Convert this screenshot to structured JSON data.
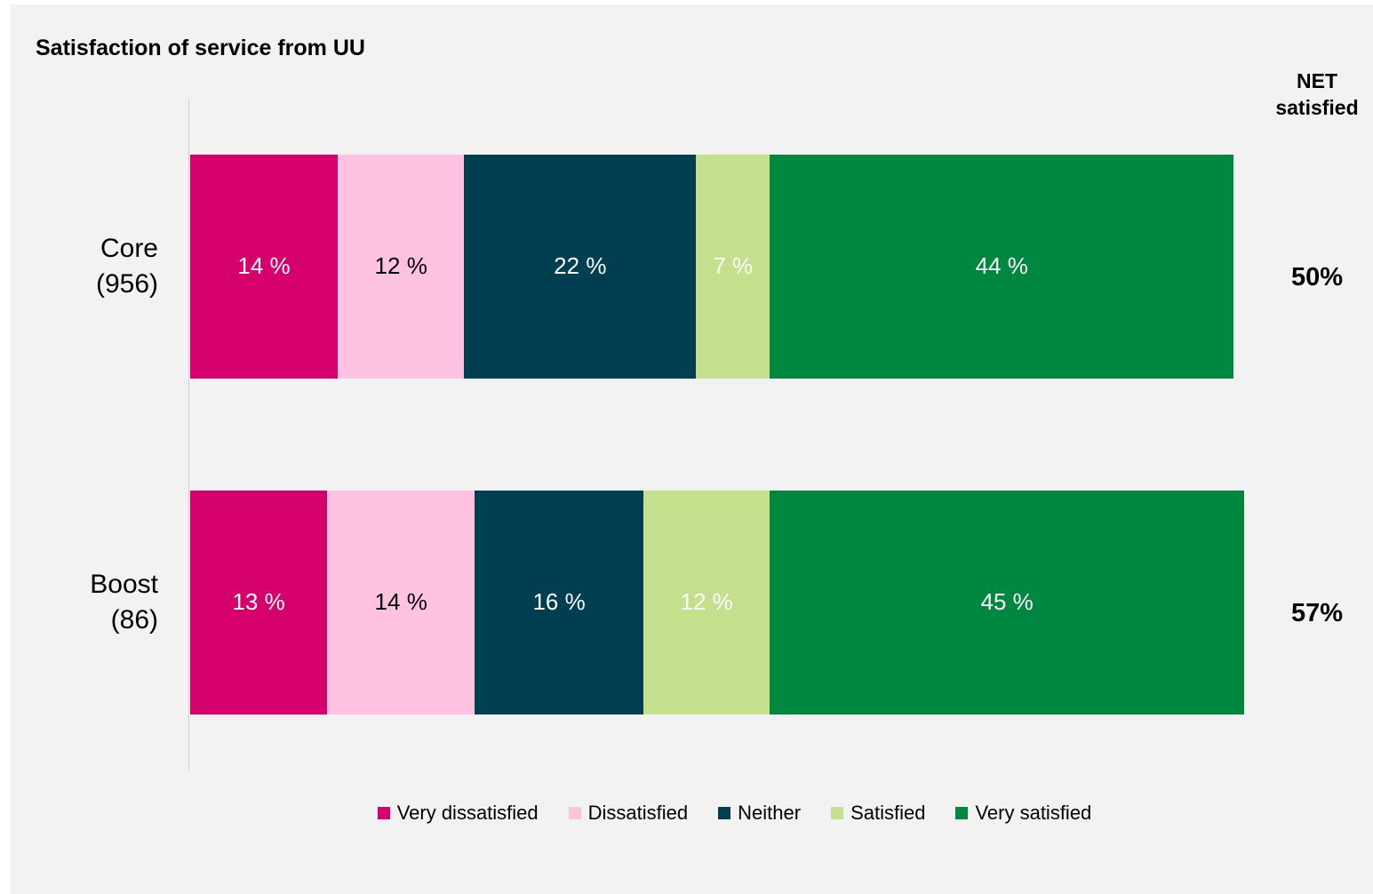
{
  "chart_data": {
    "type": "stacked_bar_horizontal",
    "title": "Satisfaction of service from UU",
    "categories": [
      "Core (956)",
      "Boost (86)"
    ],
    "xlim": [
      0,
      100
    ],
    "series": [
      {
        "name": "Very dissatisfied",
        "color": "#d6006c",
        "label_color": "#ffffff",
        "values": [
          14,
          13
        ],
        "value_labels": [
          "14 %",
          "13 %"
        ]
      },
      {
        "name": "Dissatisfied",
        "color": "#ffc2e0",
        "label_color": "#000000",
        "values": [
          12,
          14
        ],
        "value_labels": [
          "12 %",
          "14 %"
        ]
      },
      {
        "name": "Neither",
        "color": "#003f52",
        "label_color": "#ffffff",
        "values": [
          22,
          16
        ],
        "value_labels": [
          "22 %",
          "16 %"
        ]
      },
      {
        "name": "Satisfied",
        "color": "#c5e08c",
        "label_color": "#ffffff",
        "values": [
          7,
          12
        ],
        "value_labels": [
          "7 %",
          "12 %"
        ]
      },
      {
        "name": "Very satisfied",
        "color": "#00873f",
        "label_color": "#ffffff",
        "values": [
          44,
          45
        ],
        "value_labels": [
          "44 %",
          "45 %"
        ]
      }
    ],
    "net_title": "NET satisfied",
    "net_values": [
      50,
      57
    ],
    "net_value_labels": [
      "50%",
      "57%"
    ],
    "legend": "bottom"
  }
}
